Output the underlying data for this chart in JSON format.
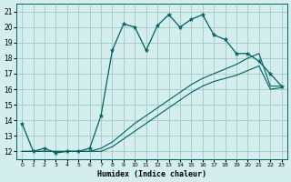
{
  "xlabel": "Humidex (Indice chaleur)",
  "bg_color": "#d4eeed",
  "grid_color": "#a0c8c8",
  "line_color": "#006060",
  "xlim": [
    -0.5,
    23.5
  ],
  "ylim": [
    11.5,
    21.5
  ],
  "xticks": [
    0,
    1,
    2,
    3,
    4,
    5,
    6,
    7,
    8,
    9,
    10,
    11,
    12,
    13,
    14,
    15,
    16,
    17,
    18,
    19,
    20,
    21,
    22,
    23
  ],
  "yticks": [
    12,
    13,
    14,
    15,
    16,
    17,
    18,
    19,
    20,
    21
  ],
  "main_x": [
    0,
    1,
    2,
    3,
    4,
    5,
    6,
    7,
    8,
    9,
    10,
    11,
    12,
    13,
    14,
    15,
    16,
    17,
    18,
    19,
    20,
    21,
    22,
    23
  ],
  "main_y": [
    13.8,
    12.0,
    12.2,
    11.9,
    12.0,
    12.0,
    12.2,
    14.3,
    18.5,
    20.2,
    20.0,
    18.5,
    20.1,
    20.8,
    20.0,
    20.5,
    20.8,
    19.5,
    19.2,
    18.3,
    18.3,
    17.8,
    17.0,
    16.2
  ],
  "line2_x": [
    0,
    1,
    2,
    3,
    4,
    5,
    6,
    7,
    8,
    9,
    10,
    11,
    12,
    13,
    14,
    15,
    16,
    17,
    18,
    19,
    20,
    21,
    22,
    23
  ],
  "line2_y": [
    12.0,
    12.0,
    12.0,
    12.0,
    12.0,
    12.0,
    12.0,
    12.2,
    12.6,
    13.2,
    13.8,
    14.3,
    14.8,
    15.3,
    15.8,
    16.3,
    16.7,
    17.0,
    17.3,
    17.6,
    18.0,
    18.3,
    16.2,
    16.2
  ],
  "line3_x": [
    0,
    1,
    2,
    3,
    4,
    5,
    6,
    7,
    8,
    9,
    10,
    11,
    12,
    13,
    14,
    15,
    16,
    17,
    18,
    19,
    20,
    21,
    22,
    23
  ],
  "line3_y": [
    12.0,
    12.0,
    12.0,
    12.0,
    12.0,
    12.0,
    12.0,
    12.0,
    12.3,
    12.8,
    13.3,
    13.8,
    14.3,
    14.8,
    15.3,
    15.8,
    16.2,
    16.5,
    16.7,
    16.9,
    17.2,
    17.5,
    16.0,
    16.1
  ]
}
